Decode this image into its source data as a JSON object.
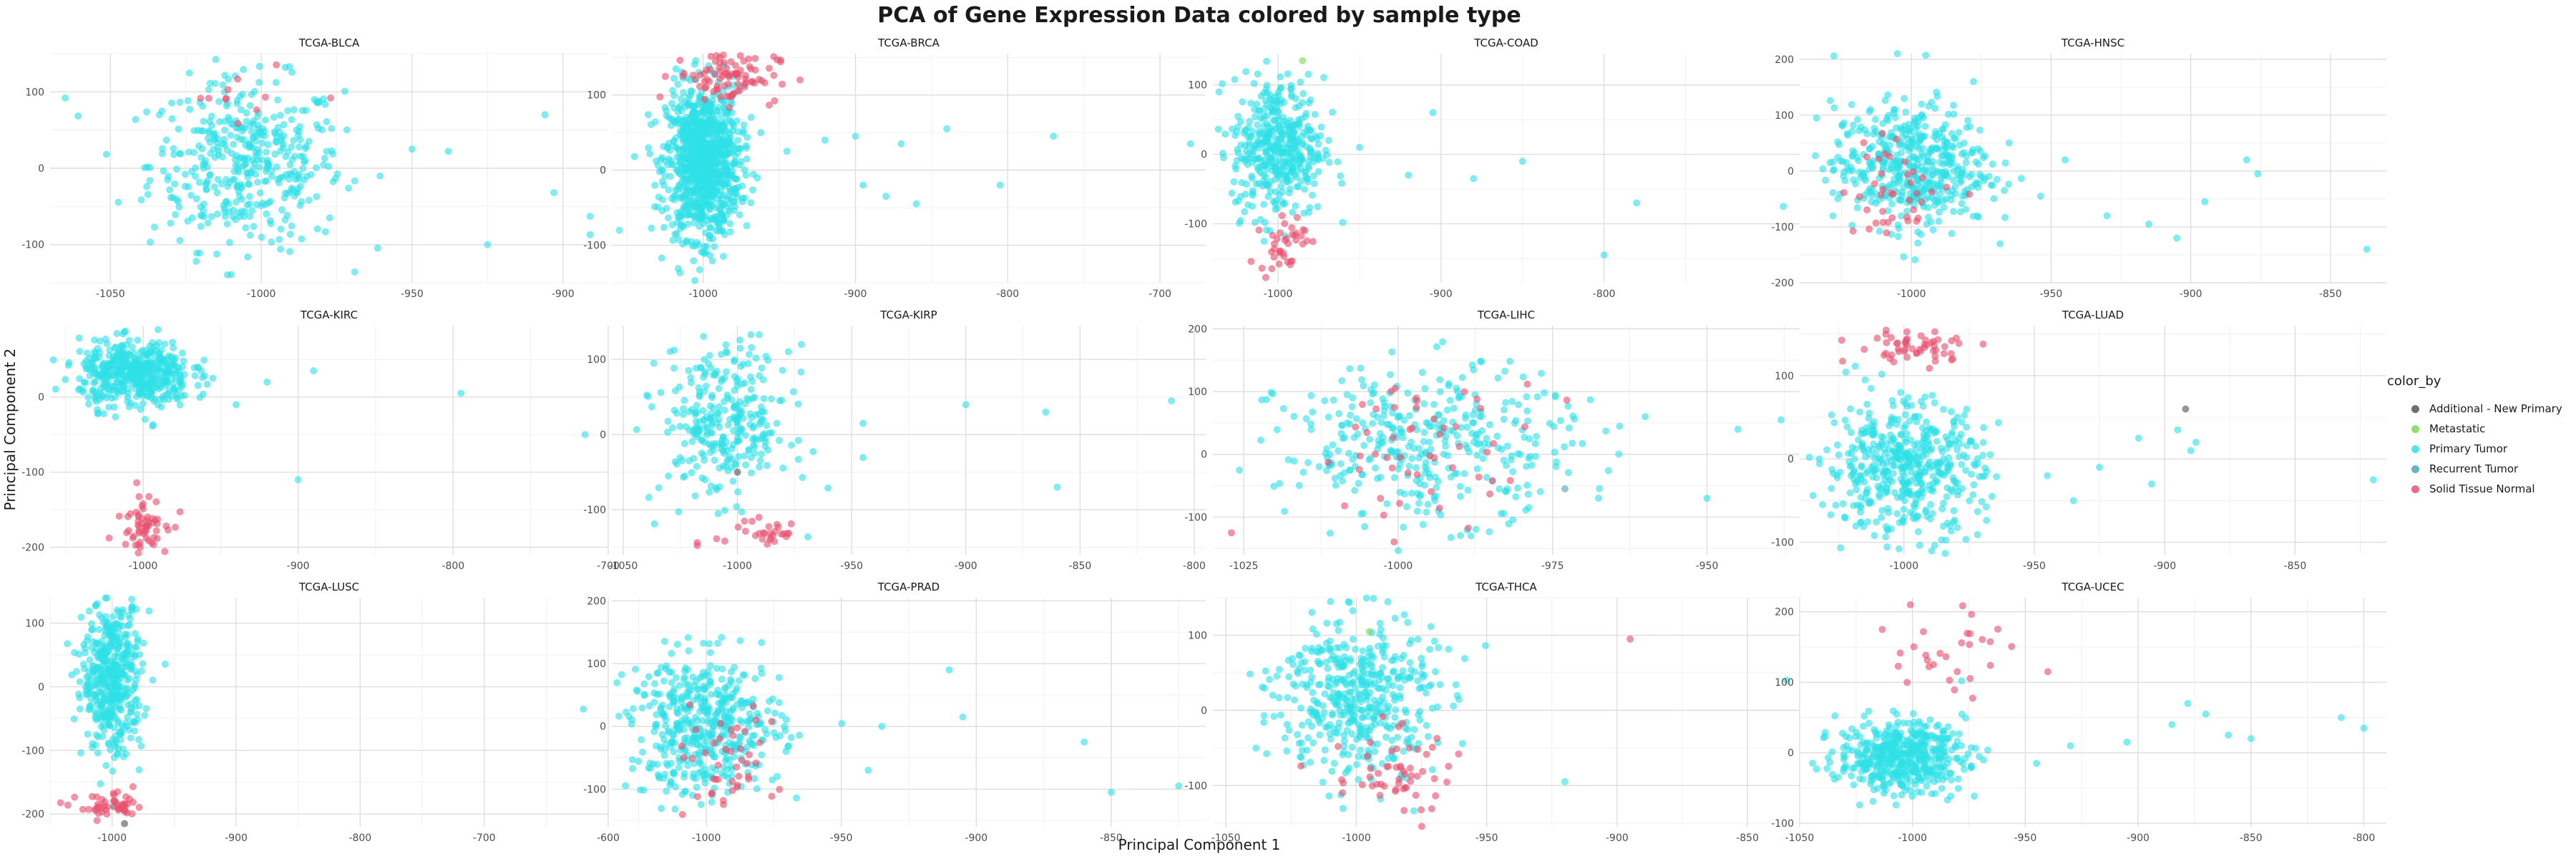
{
  "chart_data": {
    "type": "scatter",
    "title": "PCA of Gene Expression Data colored by sample type",
    "xlabel": "Principal Component 1",
    "ylabel": "Principal Component 2",
    "grid": true,
    "legend_position": "right",
    "legend": {
      "title": "color_by",
      "entries": [
        {
          "label": "Additional - New Primary",
          "color": "#555555"
        },
        {
          "label": "Metastatic",
          "color": "#7ed957"
        },
        {
          "label": "Primary Tumor",
          "color": "#2ee0e6"
        },
        {
          "label": "Recurrent Tumor",
          "color": "#4aa8b8"
        },
        {
          "label": "Solid Tissue Normal",
          "color": "#e8506e"
        }
      ]
    },
    "panels": [
      {
        "name": "TCGA-BLCA",
        "xlim": [
          -1070,
          -885
        ],
        "ylim": [
          -150,
          150
        ],
        "xticks": [
          -1050,
          -1000,
          -950,
          -900
        ],
        "yticks": [
          -100,
          0,
          100
        ],
        "clusters": [
          {
            "cls": "Primary Tumor",
            "n": 420,
            "cx": -1005,
            "cy": 5,
            "sx": 16,
            "sy": 55
          },
          {
            "cls": "Solid Tissue Normal",
            "n": 10,
            "cx": -1010,
            "cy": 100,
            "sx": 10,
            "sy": 25
          }
        ],
        "points": [
          {
            "cls": "Primary Tumor",
            "x": -1065,
            "y": 92
          },
          {
            "cls": "Primary Tumor",
            "x": -950,
            "y": 25
          },
          {
            "cls": "Primary Tumor",
            "x": -938,
            "y": 22
          },
          {
            "cls": "Primary Tumor",
            "x": -925,
            "y": -100
          },
          {
            "cls": "Primary Tumor",
            "x": -906,
            "y": 70
          },
          {
            "cls": "Primary Tumor",
            "x": -903,
            "y": -32
          },
          {
            "cls": "Primary Tumor",
            "x": -891,
            "y": -63
          },
          {
            "cls": "Primary Tumor",
            "x": -891,
            "y": -87
          },
          {
            "cls": "Solid Tissue Normal",
            "x": -977,
            "y": 92
          }
        ]
      },
      {
        "name": "TCGA-BRCA",
        "xlim": [
          -1060,
          -670
        ],
        "ylim": [
          -150,
          155
        ],
        "xticks": [
          -1000,
          -900,
          -800,
          -700
        ],
        "yticks": [
          -100,
          0,
          100
        ],
        "clusters": [
          {
            "cls": "Primary Tumor",
            "n": 1000,
            "cx": -1000,
            "cy": 10,
            "sx": 12,
            "sy": 50
          },
          {
            "cls": "Solid Tissue Normal",
            "n": 90,
            "cx": -985,
            "cy": 125,
            "sx": 17,
            "sy": 18
          }
        ],
        "points": [
          {
            "cls": "Primary Tumor",
            "x": -1055,
            "y": -80
          },
          {
            "cls": "Primary Tumor",
            "x": -945,
            "y": 25
          },
          {
            "cls": "Primary Tumor",
            "x": -920,
            "y": 40
          },
          {
            "cls": "Primary Tumor",
            "x": -900,
            "y": 45
          },
          {
            "cls": "Primary Tumor",
            "x": -895,
            "y": -20
          },
          {
            "cls": "Primary Tumor",
            "x": -880,
            "y": -35
          },
          {
            "cls": "Primary Tumor",
            "x": -870,
            "y": 35
          },
          {
            "cls": "Primary Tumor",
            "x": -860,
            "y": -45
          },
          {
            "cls": "Primary Tumor",
            "x": -840,
            "y": 55
          },
          {
            "cls": "Primary Tumor",
            "x": -805,
            "y": -20
          },
          {
            "cls": "Primary Tumor",
            "x": -770,
            "y": 45
          },
          {
            "cls": "Primary Tumor",
            "x": -680,
            "y": 35
          }
        ]
      },
      {
        "name": "TCGA-COAD",
        "xlim": [
          -1040,
          -680
        ],
        "ylim": [
          -185,
          145
        ],
        "xticks": [
          -1000,
          -900,
          -800
        ],
        "yticks": [
          -100,
          0,
          100
        ],
        "clusters": [
          {
            "cls": "Primary Tumor",
            "n": 420,
            "cx": -1000,
            "cy": 10,
            "sx": 14,
            "sy": 50
          },
          {
            "cls": "Solid Tissue Normal",
            "n": 40,
            "cx": -997,
            "cy": -125,
            "sx": 7,
            "sy": 22
          }
        ],
        "points": [
          {
            "cls": "Metastatic",
            "x": -985,
            "y": 135
          },
          {
            "cls": "Primary Tumor",
            "x": -950,
            "y": 10
          },
          {
            "cls": "Primary Tumor",
            "x": -920,
            "y": -30
          },
          {
            "cls": "Primary Tumor",
            "x": -905,
            "y": 60
          },
          {
            "cls": "Primary Tumor",
            "x": -880,
            "y": -35
          },
          {
            "cls": "Primary Tumor",
            "x": -850,
            "y": -10
          },
          {
            "cls": "Primary Tumor",
            "x": -800,
            "y": -145
          },
          {
            "cls": "Primary Tumor",
            "x": -780,
            "y": -70
          },
          {
            "cls": "Primary Tumor",
            "x": -690,
            "y": -75
          }
        ]
      },
      {
        "name": "TCGA-HNSC",
        "xlim": [
          -1040,
          -830
        ],
        "ylim": [
          -200,
          210
        ],
        "xticks": [
          -1000,
          -950,
          -900,
          -850
        ],
        "yticks": [
          -200,
          -100,
          0,
          100,
          200
        ],
        "clusters": [
          {
            "cls": "Primary Tumor",
            "n": 480,
            "cx": -1000,
            "cy": 10,
            "sx": 14,
            "sy": 55
          },
          {
            "cls": "Solid Tissue Normal",
            "n": 40,
            "cx": -1005,
            "cy": -30,
            "sx": 10,
            "sy": 45
          }
        ],
        "points": [
          {
            "cls": "Primary Tumor",
            "x": -1005,
            "y": 210
          },
          {
            "cls": "Primary Tumor",
            "x": -945,
            "y": 20
          },
          {
            "cls": "Primary Tumor",
            "x": -930,
            "y": -80
          },
          {
            "cls": "Primary Tumor",
            "x": -915,
            "y": -95
          },
          {
            "cls": "Primary Tumor",
            "x": -905,
            "y": -120
          },
          {
            "cls": "Primary Tumor",
            "x": -895,
            "y": -55
          },
          {
            "cls": "Primary Tumor",
            "x": -880,
            "y": 20
          },
          {
            "cls": "Primary Tumor",
            "x": -876,
            "y": -5
          },
          {
            "cls": "Primary Tumor",
            "x": -837,
            "y": -140
          }
        ]
      },
      {
        "name": "TCGA-KIRC",
        "xlim": [
          -1060,
          -700
        ],
        "ylim": [
          -210,
          95
        ],
        "xticks": [
          -1000,
          -900,
          -800,
          -700
        ],
        "yticks": [
          -200,
          -100,
          0
        ],
        "clusters": [
          {
            "cls": "Primary Tumor",
            "n": 480,
            "cx": -1005,
            "cy": 30,
            "sx": 18,
            "sy": 22
          },
          {
            "cls": "Solid Tissue Normal",
            "n": 60,
            "cx": -1000,
            "cy": -165,
            "sx": 8,
            "sy": 20
          }
        ],
        "points": [
          {
            "cls": "Primary Tumor",
            "x": -965,
            "y": 40
          },
          {
            "cls": "Primary Tumor",
            "x": -955,
            "y": 25
          },
          {
            "cls": "Primary Tumor",
            "x": -940,
            "y": -10
          },
          {
            "cls": "Primary Tumor",
            "x": -920,
            "y": 20
          },
          {
            "cls": "Primary Tumor",
            "x": -900,
            "y": -110
          },
          {
            "cls": "Primary Tumor",
            "x": -890,
            "y": 35
          },
          {
            "cls": "Primary Tumor",
            "x": -795,
            "y": 5
          },
          {
            "cls": "Primary Tumor",
            "x": -715,
            "y": -50
          }
        ]
      },
      {
        "name": "TCGA-KIRP",
        "xlim": [
          -1055,
          -795
        ],
        "ylim": [
          -160,
          145
        ],
        "xticks": [
          -1050,
          -1000,
          -950,
          -900,
          -850,
          -800
        ],
        "yticks": [
          -100,
          0,
          100
        ],
        "clusters": [
          {
            "cls": "Primary Tumor",
            "n": 300,
            "cx": -1005,
            "cy": 15,
            "sx": 14,
            "sy": 50
          },
          {
            "cls": "Solid Tissue Normal",
            "n": 30,
            "cx": -990,
            "cy": -130,
            "sx": 10,
            "sy": 15
          }
        ],
        "points": [
          {
            "cls": "Additional - New Primary",
            "x": -1000,
            "y": -50
          },
          {
            "cls": "Primary Tumor",
            "x": -945,
            "y": 15
          },
          {
            "cls": "Primary Tumor",
            "x": -900,
            "y": 40
          },
          {
            "cls": "Primary Tumor",
            "x": -865,
            "y": 30
          },
          {
            "cls": "Primary Tumor",
            "x": -860,
            "y": -70
          },
          {
            "cls": "Primary Tumor",
            "x": -810,
            "y": 45
          }
        ]
      },
      {
        "name": "TCGA-LIHC",
        "xlim": [
          -1030,
          -935
        ],
        "ylim": [
          -160,
          205
        ],
        "xticks": [
          -1025,
          -1000,
          -975,
          -950
        ],
        "yticks": [
          -100,
          0,
          100,
          200
        ],
        "clusters": [
          {
            "cls": "Primary Tumor",
            "n": 370,
            "cx": -995,
            "cy": 15,
            "sx": 12,
            "sy": 60
          },
          {
            "cls": "Solid Tissue Normal",
            "n": 50,
            "cx": -995,
            "cy": 10,
            "sx": 9,
            "sy": 55
          }
        ],
        "points": [
          {
            "cls": "Recurrent Tumor",
            "x": -973,
            "y": -55
          },
          {
            "cls": "Solid Tissue Normal",
            "x": -1027,
            "y": -125
          },
          {
            "cls": "Primary Tumor",
            "x": -960,
            "y": 60
          },
          {
            "cls": "Primary Tumor",
            "x": -950,
            "y": -70
          },
          {
            "cls": "Primary Tumor",
            "x": -945,
            "y": 40
          },
          {
            "cls": "Primary Tumor",
            "x": -938,
            "y": 55
          }
        ]
      },
      {
        "name": "TCGA-LUAD",
        "xlim": [
          -1040,
          -815
        ],
        "ylim": [
          -115,
          160
        ],
        "xticks": [
          -1000,
          -950,
          -900,
          -850
        ],
        "yticks": [
          -100,
          0,
          100
        ],
        "clusters": [
          {
            "cls": "Primary Tumor",
            "n": 480,
            "cx": -1000,
            "cy": -10,
            "sx": 15,
            "sy": 40
          },
          {
            "cls": "Solid Tissue Normal",
            "n": 55,
            "cx": -995,
            "cy": 135,
            "sx": 12,
            "sy": 10
          }
        ],
        "points": [
          {
            "cls": "Primary Tumor",
            "x": -945,
            "y": -20
          },
          {
            "cls": "Primary Tumor",
            "x": -935,
            "y": -50
          },
          {
            "cls": "Primary Tumor",
            "x": -925,
            "y": -10
          },
          {
            "cls": "Primary Tumor",
            "x": -910,
            "y": 25
          },
          {
            "cls": "Primary Tumor",
            "x": -905,
            "y": -30
          },
          {
            "cls": "Primary Tumor",
            "x": -895,
            "y": 35
          },
          {
            "cls": "Primary Tumor",
            "x": -890,
            "y": 10
          },
          {
            "cls": "Primary Tumor",
            "x": -888,
            "y": 20
          },
          {
            "cls": "Additional - New Primary",
            "x": -892,
            "y": 60
          },
          {
            "cls": "Primary Tumor",
            "x": -820,
            "y": -25
          }
        ]
      },
      {
        "name": "TCGA-LUSC",
        "xlim": [
          -1050,
          -600
        ],
        "ylim": [
          -220,
          140
        ],
        "xticks": [
          -1000,
          -900,
          -800,
          -700,
          -600
        ],
        "yticks": [
          -200,
          -100,
          0,
          100
        ],
        "clusters": [
          {
            "cls": "Primary Tumor",
            "n": 470,
            "cx": -1000,
            "cy": 15,
            "sx": 12,
            "sy": 60
          },
          {
            "cls": "Solid Tissue Normal",
            "n": 50,
            "cx": -1000,
            "cy": -190,
            "sx": 14,
            "sy": 10
          }
        ],
        "points": [
          {
            "cls": "Primary Tumor",
            "x": -620,
            "y": -35
          },
          {
            "cls": "Additional - New Primary",
            "x": -990,
            "y": -215
          }
        ]
      },
      {
        "name": "TCGA-PRAD",
        "xlim": [
          -1035,
          -815
        ],
        "ylim": [
          -160,
          205
        ],
        "xticks": [
          -1000,
          -950,
          -900,
          -850
        ],
        "yticks": [
          -100,
          0,
          100,
          200
        ],
        "clusters": [
          {
            "cls": "Primary Tumor",
            "n": 470,
            "cx": -1000,
            "cy": 0,
            "sx": 14,
            "sy": 55
          },
          {
            "cls": "Solid Tissue Normal",
            "n": 45,
            "cx": -995,
            "cy": -60,
            "sx": 10,
            "sy": 40
          }
        ],
        "points": [
          {
            "cls": "Primary Tumor",
            "x": -940,
            "y": -70
          },
          {
            "cls": "Primary Tumor",
            "x": -935,
            "y": 0
          },
          {
            "cls": "Primary Tumor",
            "x": -910,
            "y": 90
          },
          {
            "cls": "Primary Tumor",
            "x": -905,
            "y": 15
          },
          {
            "cls": "Primary Tumor",
            "x": -860,
            "y": -25
          },
          {
            "cls": "Primary Tumor",
            "x": -850,
            "y": -105
          },
          {
            "cls": "Primary Tumor",
            "x": -825,
            "y": -95
          }
        ]
      },
      {
        "name": "TCGA-THCA",
        "xlim": [
          -1055,
          -830
        ],
        "ylim": [
          -155,
          150
        ],
        "xticks": [
          -1050,
          -1000,
          -950,
          -900,
          -850
        ],
        "yticks": [
          -100,
          0,
          100
        ],
        "clusters": [
          {
            "cls": "Primary Tumor",
            "n": 460,
            "cx": -1000,
            "cy": 20,
            "sx": 15,
            "sy": 55
          },
          {
            "cls": "Solid Tissue Normal",
            "n": 55,
            "cx": -985,
            "cy": -85,
            "sx": 12,
            "sy": 30
          }
        ],
        "points": [
          {
            "cls": "Metastatic",
            "x": -995,
            "y": 105
          },
          {
            "cls": "Primary Tumor",
            "x": -920,
            "y": -95
          },
          {
            "cls": "Solid Tissue Normal",
            "x": -895,
            "y": 95
          },
          {
            "cls": "Primary Tumor",
            "x": -835,
            "y": 40
          }
        ]
      },
      {
        "name": "TCGA-UCEC",
        "xlim": [
          -1050,
          -790
        ],
        "ylim": [
          -105,
          220
        ],
        "xticks": [
          -1050,
          -1000,
          -950,
          -900,
          -850,
          -800
        ],
        "yticks": [
          -100,
          0,
          100,
          200
        ],
        "clusters": [
          {
            "cls": "Primary Tumor",
            "n": 470,
            "cx": -1005,
            "cy": -5,
            "sx": 14,
            "sy": 25
          },
          {
            "cls": "Solid Tissue Normal",
            "n": 30,
            "cx": -982,
            "cy": 150,
            "sx": 14,
            "sy": 40
          }
        ],
        "points": [
          {
            "cls": "Primary Tumor",
            "x": -945,
            "y": -15
          },
          {
            "cls": "Primary Tumor",
            "x": -930,
            "y": 10
          },
          {
            "cls": "Primary Tumor",
            "x": -905,
            "y": 15
          },
          {
            "cls": "Primary Tumor",
            "x": -885,
            "y": 40
          },
          {
            "cls": "Primary Tumor",
            "x": -878,
            "y": 70
          },
          {
            "cls": "Primary Tumor",
            "x": -870,
            "y": 55
          },
          {
            "cls": "Primary Tumor",
            "x": -860,
            "y": 25
          },
          {
            "cls": "Primary Tumor",
            "x": -850,
            "y": 20
          },
          {
            "cls": "Primary Tumor",
            "x": -810,
            "y": 50
          },
          {
            "cls": "Primary Tumor",
            "x": -800,
            "y": 35
          },
          {
            "cls": "Solid Tissue Normal",
            "x": -940,
            "y": 115
          }
        ]
      }
    ]
  }
}
